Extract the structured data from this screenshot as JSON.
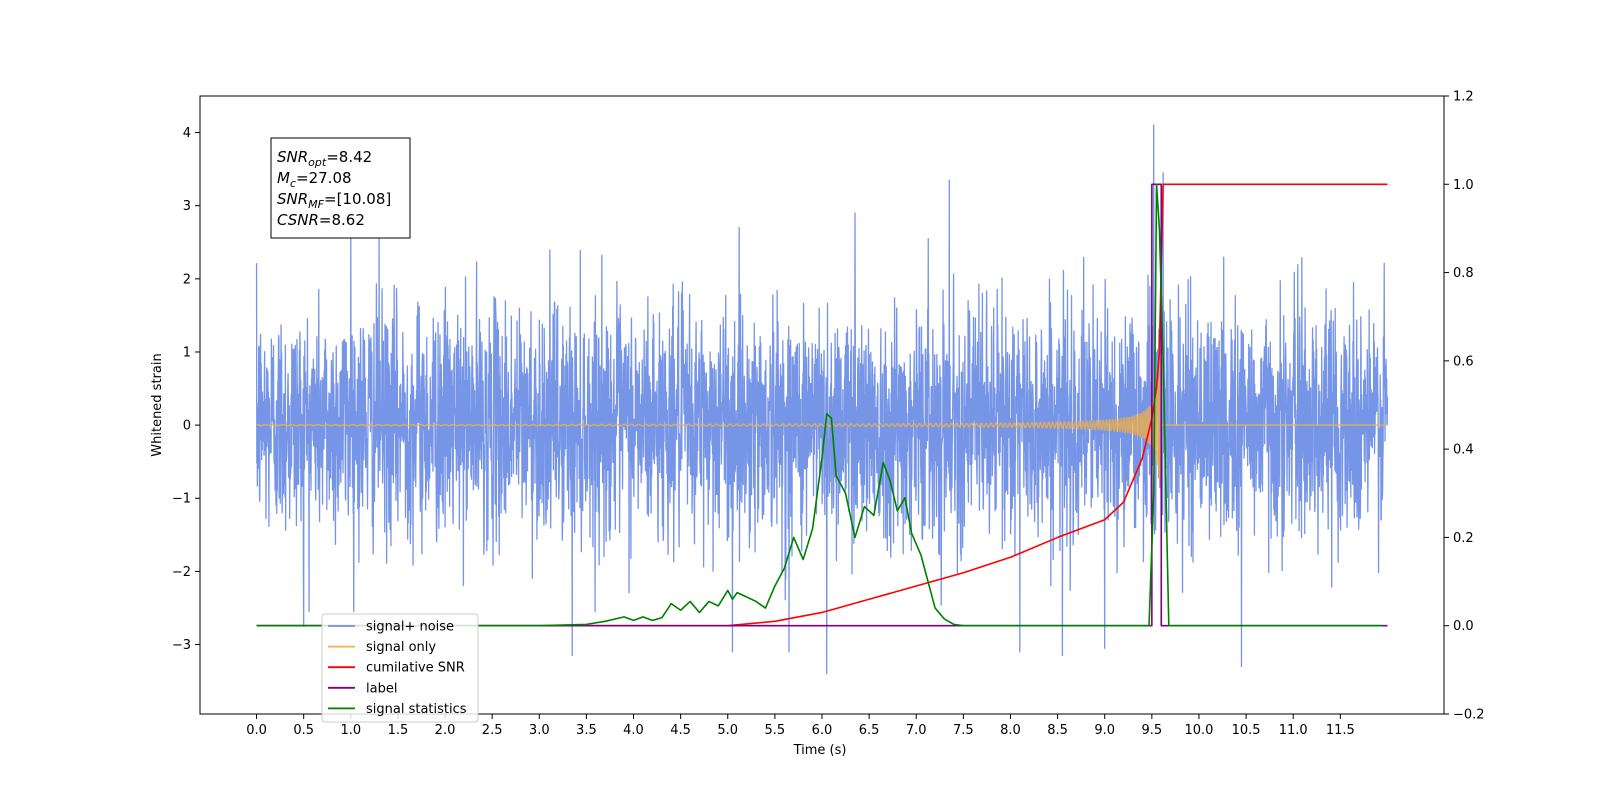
{
  "chart_data": {
    "type": "line",
    "xlabel": "Time (s)",
    "ylabel": "Whitened strain",
    "xlim": [
      -0.6,
      12.6
    ],
    "ylim": [
      -3.95,
      4.5
    ],
    "ylim_right": [
      -0.2,
      1.2
    ],
    "x_ticks": [
      0.0,
      0.5,
      1.0,
      1.5,
      2.0,
      2.5,
      3.0,
      3.5,
      4.0,
      4.5,
      5.0,
      5.5,
      6.0,
      6.5,
      7.0,
      7.5,
      8.0,
      8.5,
      9.0,
      9.5,
      10.0,
      10.5,
      11.0,
      11.5
    ],
    "x_tick_labels": [
      "0.0",
      "0.5",
      "1.0",
      "1.5",
      "2.0",
      "2.5",
      "3.0",
      "3.5",
      "4.0",
      "4.5",
      "5.0",
      "5.5",
      "6.0",
      "6.5",
      "7.0",
      "7.5",
      "8.0",
      "8.5",
      "9.0",
      "9.5",
      "10.0",
      "10.5",
      "11.0",
      "11.5"
    ],
    "y_ticks": [
      -3,
      -2,
      -1,
      0,
      1,
      2,
      3,
      4
    ],
    "y_tick_labels": [
      "−3",
      "−2",
      "−1",
      "0",
      "1",
      "2",
      "3",
      "4"
    ],
    "y_ticks_right": [
      -0.2,
      0.0,
      0.2,
      0.4,
      0.6,
      0.8,
      1.0,
      1.2
    ],
    "y_tick_labels_right": [
      "−0.2",
      "0.0",
      "0.2",
      "0.4",
      "0.6",
      "0.8",
      "1.0",
      "1.2"
    ],
    "grid": false,
    "legend_position": "lower-left",
    "series": [
      {
        "name": "signal+ noise",
        "axis": "left",
        "color": "#6f8fe6",
        "style": "noise",
        "x_range": [
          0.0,
          12.0
        ],
        "band": [
          -1.75,
          1.75
        ],
        "spikes": [
          {
            "x": 0.5,
            "y": -2.75
          },
          {
            "x": 1.0,
            "y": 2.6
          },
          {
            "x": 1.3,
            "y": 2.65
          },
          {
            "x": 3.35,
            "y": -3.15
          },
          {
            "x": 5.05,
            "y": -3.1
          },
          {
            "x": 5.65,
            "y": -3.1
          },
          {
            "x": 6.05,
            "y": -3.4
          },
          {
            "x": 6.35,
            "y": 2.9
          },
          {
            "x": 7.35,
            "y": 3.35
          },
          {
            "x": 8.1,
            "y": -3.1
          },
          {
            "x": 8.55,
            "y": -3.15
          },
          {
            "x": 9.0,
            "y": -3.05
          },
          {
            "x": 9.52,
            "y": 4.1
          },
          {
            "x": 9.62,
            "y": 3.45
          },
          {
            "x": 10.45,
            "y": -3.3
          }
        ]
      },
      {
        "name": "signal only",
        "axis": "left",
        "color": "#f5b041",
        "style": "chirp",
        "x_range": [
          0.0,
          12.0
        ],
        "merger_time": 9.6
      },
      {
        "name": "cumilative SNR",
        "axis": "right",
        "color": "#ff0000",
        "x": [
          0.0,
          5.0,
          5.5,
          6.0,
          6.5,
          7.0,
          7.5,
          8.0,
          8.5,
          9.0,
          9.2,
          9.4,
          9.5,
          9.55,
          9.58,
          9.6,
          9.62,
          12.0
        ],
        "y": [
          0.0,
          0.0,
          0.01,
          0.03,
          0.06,
          0.09,
          0.12,
          0.155,
          0.2,
          0.24,
          0.28,
          0.38,
          0.47,
          0.54,
          0.62,
          0.82,
          1.0,
          1.0
        ]
      },
      {
        "name": "label",
        "axis": "right",
        "color": "#800080",
        "x": [
          0.0,
          9.5,
          9.5,
          9.6,
          9.6,
          12.0
        ],
        "y": [
          0.0,
          0.0,
          1.0,
          1.0,
          0.0,
          0.0
        ]
      },
      {
        "name": "signal statistics",
        "axis": "right",
        "color": "#008000",
        "x": [
          0.0,
          3.0,
          3.5,
          3.7,
          3.9,
          4.0,
          4.1,
          4.2,
          4.3,
          4.4,
          4.5,
          4.6,
          4.7,
          4.8,
          4.9,
          5.0,
          5.05,
          5.1,
          5.2,
          5.3,
          5.4,
          5.5,
          5.6,
          5.7,
          5.8,
          5.9,
          6.0,
          6.05,
          6.1,
          6.15,
          6.25,
          6.35,
          6.45,
          6.55,
          6.65,
          6.72,
          6.8,
          6.88,
          6.95,
          7.05,
          7.1,
          7.2,
          7.3,
          7.4,
          7.5,
          9.47,
          9.52,
          9.55,
          9.58,
          9.62,
          9.68,
          11.95
        ],
        "y": [
          0.0,
          0.0,
          0.003,
          0.01,
          0.02,
          0.012,
          0.02,
          0.012,
          0.018,
          0.05,
          0.035,
          0.055,
          0.03,
          0.055,
          0.045,
          0.08,
          0.06,
          0.075,
          0.065,
          0.055,
          0.04,
          0.09,
          0.13,
          0.2,
          0.15,
          0.22,
          0.38,
          0.48,
          0.47,
          0.34,
          0.3,
          0.2,
          0.27,
          0.25,
          0.37,
          0.33,
          0.26,
          0.29,
          0.21,
          0.16,
          0.12,
          0.04,
          0.015,
          0.003,
          0.0,
          0.0,
          0.3,
          1.0,
          0.9,
          0.6,
          0.0,
          0.0
        ]
      }
    ],
    "annotation_box": {
      "lines": [
        {
          "sym": "SNR",
          "sub": "opt",
          "value": "=8.42"
        },
        {
          "sym": "M",
          "sub": "c",
          "value": "=27.08"
        },
        {
          "sym": "SNR",
          "sub": "MF",
          "value": "=[10.08]"
        },
        {
          "sym": "CSNR",
          "sub": "",
          "value": "=8.62"
        }
      ]
    },
    "legend_entries": [
      {
        "label": "signal+ noise",
        "color": "#6f8fe6"
      },
      {
        "label": "signal only",
        "color": "#f5b041"
      },
      {
        "label": "cumilative SNR",
        "color": "#ff0000"
      },
      {
        "label": "label",
        "color": "#800080"
      },
      {
        "label": "signal statistics",
        "color": "#008000"
      }
    ]
  }
}
